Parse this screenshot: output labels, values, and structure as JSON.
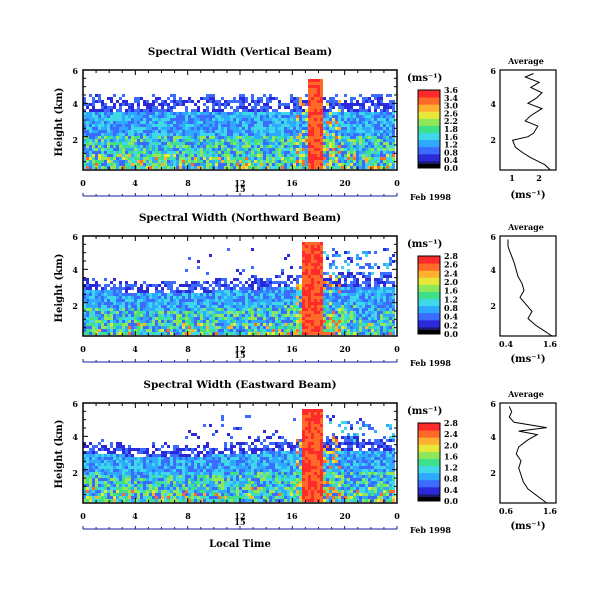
{
  "panels": [
    {
      "title": "Spectral Width (Vertical Beam)",
      "ylabel": "Height (km)",
      "yticks": [
        "2",
        "4",
        "6"
      ],
      "xticks": [
        "0",
        "4",
        "8",
        "12",
        "16",
        "20",
        "0"
      ],
      "day_label": "15",
      "date_label": "Feb 1998",
      "colorbar_title": "(ms⁻¹)",
      "colorbar_ticks": [
        "3.6",
        "3.4",
        "3.0",
        "2.6",
        "2.2",
        "1.8",
        "1.6",
        "1.2",
        "0.8",
        "0.4",
        "0.0"
      ],
      "avg_title": "Average",
      "avg_xlabel": "(ms⁻¹)",
      "avg_xticks": [
        "1",
        "2"
      ],
      "avg_yticks": [
        "2",
        "4",
        "6"
      ],
      "profile": {
        "x": [
          2.3,
          2.1,
          1.85,
          1.6,
          1.3,
          1.05,
          0.95,
          1.5,
          1.7,
          1.85,
          1.4,
          1.6,
          2.0,
          1.5,
          1.8,
          2.0,
          1.6,
          1.9,
          1.4,
          1.7
        ],
        "y": [
          0.5,
          0.8,
          1.0,
          1.2,
          1.5,
          1.8,
          2.2,
          2.4,
          2.6,
          3.0,
          3.3,
          3.6,
          4.0,
          4.3,
          4.6,
          4.9,
          5.2,
          5.5,
          5.8,
          6.0
        ]
      }
    },
    {
      "title": "Spectral Width (Northward Beam)",
      "ylabel": "Height (km)",
      "yticks": [
        "2",
        "4",
        "6"
      ],
      "xticks": [
        "0",
        "4",
        "8",
        "12",
        "16",
        "20",
        "0"
      ],
      "day_label": "15",
      "date_label": "Feb 1998",
      "colorbar_title": "(ms⁻¹)",
      "colorbar_ticks": [
        "2.8",
        "2.6",
        "2.4",
        "2.0",
        "1.6",
        "1.2",
        "0.8",
        "0.4",
        "0.2",
        "0.0"
      ],
      "avg_title": "Average",
      "avg_xlabel": "(ms⁻¹)",
      "avg_xticks": [
        "0.4",
        "1.6"
      ],
      "avg_yticks": [
        "2",
        "4",
        "6"
      ],
      "profile": {
        "x": [
          1.6,
          1.4,
          1.2,
          1.0,
          1.1,
          0.95,
          0.8,
          0.9,
          0.85,
          0.75,
          0.7,
          0.65,
          0.6,
          0.55,
          0.5,
          0.5
        ],
        "y": [
          0.5,
          0.8,
          1.1,
          1.5,
          1.9,
          2.3,
          2.7,
          3.1,
          3.5,
          3.9,
          4.3,
          4.7,
          5.0,
          5.3,
          5.6,
          6.0
        ]
      }
    },
    {
      "title": "Spectral Width (Eastward Beam)",
      "ylabel": "Height (km)",
      "yticks": [
        "2",
        "4",
        "6"
      ],
      "xticks": [
        "0",
        "4",
        "8",
        "12",
        "16",
        "20",
        "0"
      ],
      "day_label": "15",
      "date_label": "Feb 1998",
      "colorbar_title": "(ms⁻¹)",
      "colorbar_ticks": [
        "2.8",
        "2.4",
        "2.0",
        "1.6",
        "1.2",
        "0.8",
        "0.4",
        "0.0"
      ],
      "avg_title": "Average",
      "avg_xlabel": "(ms⁻¹)",
      "avg_xticks": [
        "0.6",
        "1.6"
      ],
      "avg_yticks": [
        "2",
        "4",
        "6"
      ],
      "profile": {
        "x": [
          1.5,
          1.3,
          1.1,
          1.0,
          0.95,
          0.9,
          0.95,
          0.85,
          0.9,
          1.1,
          1.3,
          0.9,
          1.5,
          0.8,
          0.7,
          0.75,
          0.7
        ],
        "y": [
          0.5,
          0.9,
          1.3,
          1.7,
          2.1,
          2.5,
          2.9,
          3.3,
          3.7,
          4.1,
          4.4,
          4.6,
          4.8,
          5.1,
          5.4,
          5.7,
          6.0
        ]
      }
    }
  ],
  "xlabel": "Local Time",
  "colors": {
    "scale": [
      "#1a1a6e",
      "#2a2adb",
      "#3b6bff",
      "#2fa8ff",
      "#3fd8e8",
      "#3fe08a",
      "#8ee85a",
      "#e8e838",
      "#ffb030",
      "#ff6a28",
      "#ff2a2a"
    ],
    "dark": "#000000"
  },
  "chart_data": [
    {
      "type": "heatmap",
      "title": "Spectral Width (Vertical Beam)",
      "xlabel": "",
      "ylabel": "Height (km)",
      "xlim": [
        0,
        24
      ],
      "ylim": [
        0.5,
        6.2
      ],
      "colorbar_range": [
        0.0,
        3.6
      ]
    },
    {
      "type": "heatmap",
      "title": "Spectral Width (Northward Beam)",
      "xlabel": "",
      "ylabel": "Height (km)",
      "xlim": [
        0,
        24
      ],
      "ylim": [
        0.5,
        6.2
      ],
      "colorbar_range": [
        0.0,
        2.8
      ]
    },
    {
      "type": "heatmap",
      "title": "Spectral Width (Eastward Beam)",
      "xlabel": "Local Time",
      "ylabel": "Height (km)",
      "xlim": [
        0,
        24
      ],
      "ylim": [
        0.5,
        6.2
      ],
      "colorbar_range": [
        0.0,
        2.8
      ]
    },
    {
      "type": "line",
      "title": "Average",
      "xlabel": "(ms⁻¹)",
      "ylabel": "",
      "xlim": [
        0.5,
        2.5
      ],
      "ylim": [
        0.5,
        6.0
      ]
    },
    {
      "type": "line",
      "title": "Average",
      "xlabel": "(ms⁻¹)",
      "ylabel": "",
      "xlim": [
        0.3,
        1.7
      ],
      "ylim": [
        0.5,
        6.0
      ]
    },
    {
      "type": "line",
      "title": "Average",
      "xlabel": "(ms⁻¹)",
      "ylabel": "",
      "xlim": [
        0.5,
        1.7
      ],
      "ylim": [
        0.5,
        6.0
      ]
    }
  ]
}
